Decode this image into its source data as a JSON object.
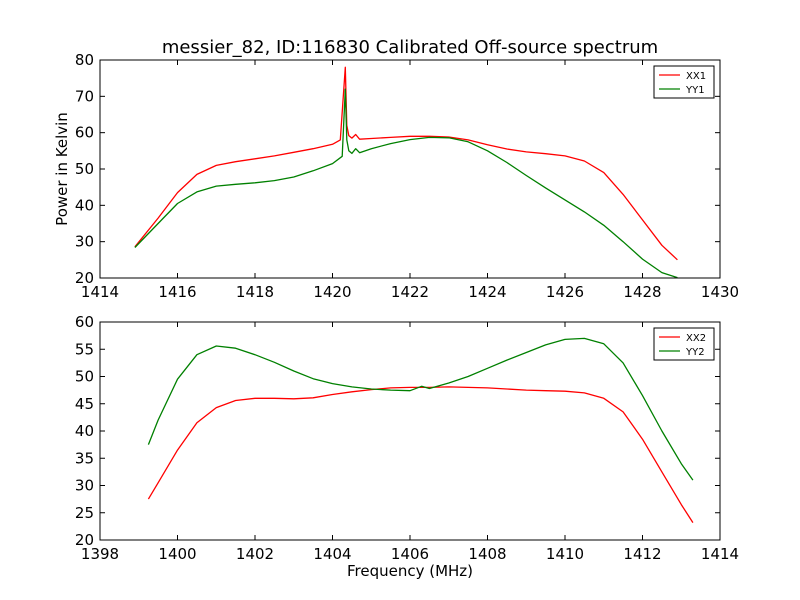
{
  "title": "messier_82, ID:116830 Calibrated Off-source spectrum",
  "colors": {
    "red": "#ff0000",
    "green": "#008000"
  },
  "chart_data": [
    {
      "type": "line",
      "xlabel": "",
      "ylabel": "Power in Kelvin",
      "xlim": [
        1414,
        1430
      ],
      "ylim": [
        20,
        80
      ],
      "xticks": [
        "1414",
        "1416",
        "1418",
        "1420",
        "1422",
        "1424",
        "1426",
        "1428",
        "1430"
      ],
      "yticks": [
        "20",
        "30",
        "40",
        "50",
        "60",
        "70",
        "80"
      ],
      "legend": "top-right",
      "series": [
        {
          "name": "XX1",
          "color": "#ff0000",
          "x": [
            1414.9,
            1415.5,
            1416.0,
            1416.5,
            1417.0,
            1417.5,
            1418.0,
            1418.5,
            1419.0,
            1419.5,
            1420.0,
            1420.2,
            1420.33,
            1420.37,
            1420.42,
            1420.5,
            1420.6,
            1420.7,
            1421.0,
            1421.5,
            1422.0,
            1422.5,
            1423.0,
            1423.5,
            1424.0,
            1424.5,
            1425.0,
            1425.5,
            1426.0,
            1426.5,
            1427.0,
            1427.5,
            1428.0,
            1428.5,
            1428.9
          ],
          "y": [
            28.6,
            36.5,
            43.5,
            48.5,
            51.0,
            52.0,
            52.8,
            53.6,
            54.6,
            55.6,
            56.8,
            58.0,
            78.0,
            62.0,
            59.2,
            58.5,
            59.5,
            58.2,
            58.4,
            58.7,
            59.0,
            59.0,
            58.8,
            58.0,
            56.7,
            55.5,
            54.7,
            54.2,
            53.6,
            52.2,
            49.0,
            43.0,
            36.0,
            29.0,
            25.0
          ]
        },
        {
          "name": "YY1",
          "color": "#008000",
          "x": [
            1414.9,
            1415.5,
            1416.0,
            1416.5,
            1417.0,
            1417.5,
            1418.0,
            1418.5,
            1419.0,
            1419.5,
            1420.0,
            1420.25,
            1420.33,
            1420.37,
            1420.42,
            1420.5,
            1420.6,
            1420.7,
            1421.0,
            1421.5,
            1422.0,
            1422.5,
            1423.0,
            1423.5,
            1424.0,
            1424.5,
            1425.0,
            1425.5,
            1426.0,
            1426.5,
            1427.0,
            1427.5,
            1428.0,
            1428.5,
            1428.9
          ],
          "y": [
            28.4,
            35.0,
            40.5,
            43.7,
            45.3,
            45.8,
            46.2,
            46.8,
            47.8,
            49.5,
            51.5,
            53.5,
            72.0,
            58.0,
            55.0,
            54.3,
            55.6,
            54.5,
            55.6,
            57.0,
            58.1,
            58.7,
            58.6,
            57.5,
            55.0,
            51.8,
            48.2,
            44.8,
            41.5,
            38.2,
            34.5,
            30.0,
            25.2,
            21.5,
            20.1
          ]
        }
      ]
    },
    {
      "type": "line",
      "xlabel": "Frequency (MHz)",
      "ylabel": "",
      "xlim": [
        1398,
        1414
      ],
      "ylim": [
        20,
        60
      ],
      "xticks": [
        "1398",
        "1400",
        "1402",
        "1404",
        "1406",
        "1408",
        "1410",
        "1412",
        "1414"
      ],
      "yticks": [
        "20",
        "25",
        "30",
        "35",
        "40",
        "45",
        "50",
        "55",
        "60"
      ],
      "legend": "top-right",
      "series": [
        {
          "name": "XX2",
          "color": "#ff0000",
          "x": [
            1399.25,
            1399.5,
            1400.0,
            1400.5,
            1401.0,
            1401.5,
            1402.0,
            1402.5,
            1403.0,
            1403.5,
            1404.0,
            1404.5,
            1405.0,
            1405.5,
            1406.0,
            1406.5,
            1407.0,
            1407.5,
            1408.0,
            1408.5,
            1409.0,
            1409.5,
            1410.0,
            1410.5,
            1411.0,
            1411.5,
            1412.0,
            1412.5,
            1413.0,
            1413.3
          ],
          "y": [
            27.5,
            30.5,
            36.5,
            41.5,
            44.3,
            45.6,
            46.0,
            46.0,
            45.9,
            46.1,
            46.7,
            47.2,
            47.6,
            47.9,
            48.0,
            48.0,
            48.1,
            48.0,
            47.9,
            47.7,
            47.5,
            47.4,
            47.3,
            47.0,
            46.0,
            43.5,
            38.5,
            32.5,
            26.5,
            23.2
          ]
        },
        {
          "name": "YY2",
          "color": "#008000",
          "x": [
            1399.25,
            1399.5,
            1400.0,
            1400.5,
            1401.0,
            1401.5,
            1402.0,
            1402.5,
            1403.0,
            1403.5,
            1404.0,
            1404.5,
            1405.0,
            1405.5,
            1406.0,
            1406.3,
            1406.5,
            1407.0,
            1407.5,
            1408.0,
            1408.5,
            1409.0,
            1409.5,
            1410.0,
            1410.5,
            1411.0,
            1411.5,
            1412.0,
            1412.5,
            1413.0,
            1413.3
          ],
          "y": [
            37.5,
            42.0,
            49.5,
            54.0,
            55.6,
            55.2,
            54.0,
            52.6,
            51.0,
            49.6,
            48.7,
            48.1,
            47.7,
            47.5,
            47.4,
            48.2,
            47.8,
            48.8,
            50.0,
            51.5,
            53.0,
            54.4,
            55.8,
            56.8,
            57.0,
            56.0,
            52.5,
            46.5,
            40.0,
            34.0,
            31.0
          ]
        }
      ]
    }
  ]
}
